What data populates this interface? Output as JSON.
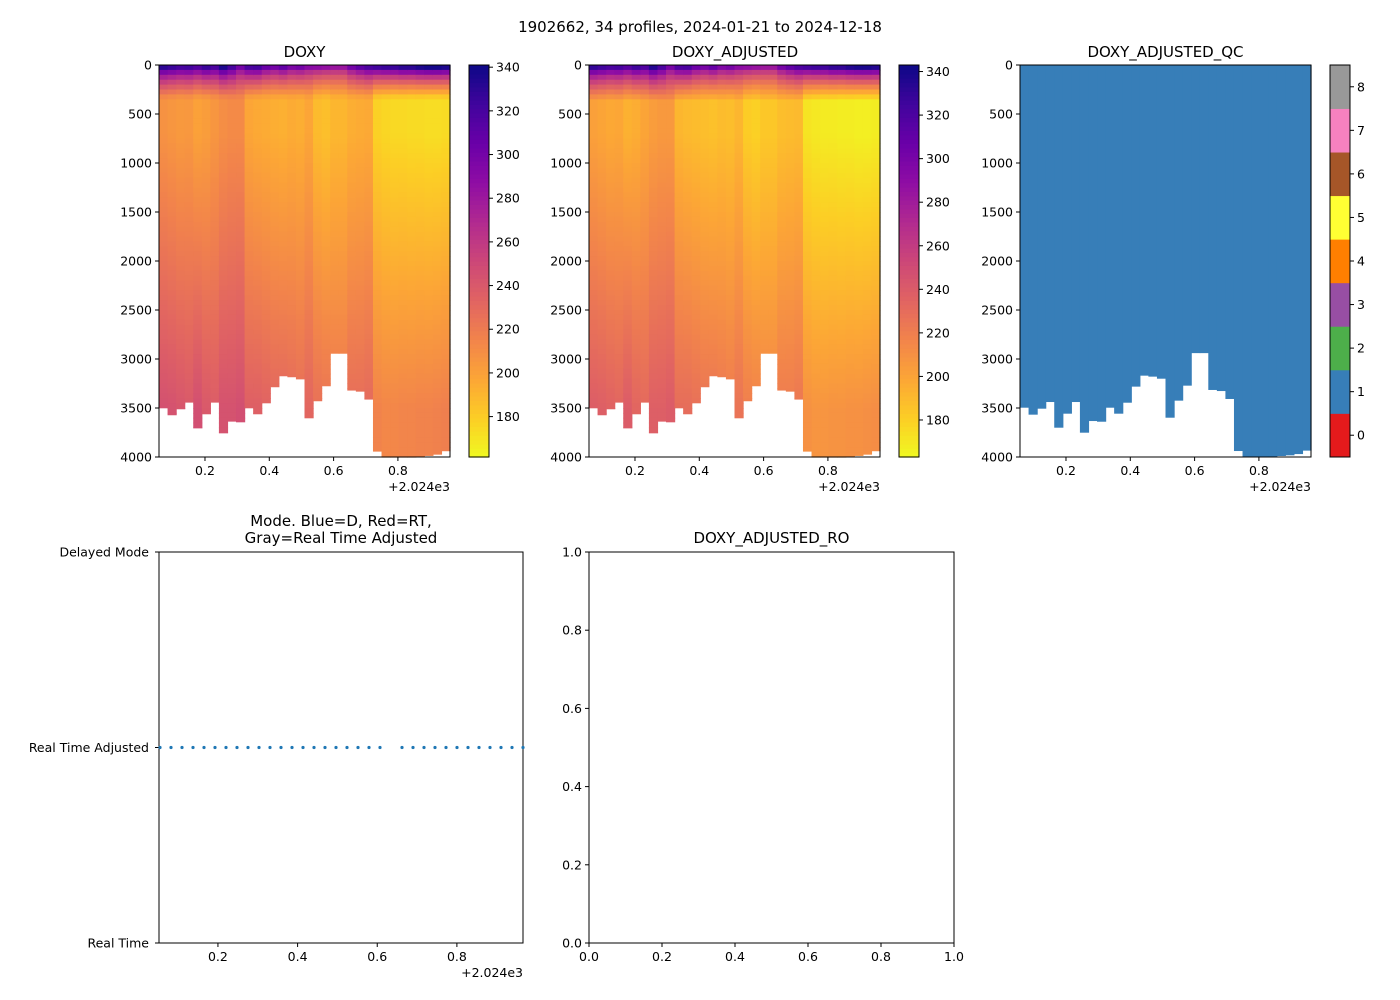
{
  "figure_title": "1902662, 34 profiles, 2024-01-21 to 2024-12-18",
  "chart_data": [
    {
      "id": "doxy",
      "type": "heatmap",
      "title": "DOXY",
      "xlim": [
        0.057,
        0.962
      ],
      "x_offset_label": "+2.024e3",
      "xticks": [
        "0.2",
        "0.4",
        "0.6",
        "0.8"
      ],
      "xtick_values": [
        0.2,
        0.4,
        0.6,
        0.8
      ],
      "ylim": [
        4000,
        0
      ],
      "yticks": [
        0,
        500,
        1000,
        1500,
        2000,
        2500,
        3000,
        3500,
        4000
      ],
      "colorbar": {
        "colormap": "plasma_r",
        "range": [
          161.5,
          341
        ],
        "ticks": [
          180,
          200,
          220,
          240,
          260,
          280,
          300,
          320,
          340
        ]
      },
      "value_offset": 0
    },
    {
      "id": "doxy_adjusted",
      "type": "heatmap",
      "title": "DOXY_ADJUSTED",
      "xlim": [
        0.057,
        0.962
      ],
      "x_offset_label": "+2.024e3",
      "xticks": [
        "0.2",
        "0.4",
        "0.6",
        "0.8"
      ],
      "xtick_values": [
        0.2,
        0.4,
        0.6,
        0.8
      ],
      "ylim": [
        4000,
        0
      ],
      "yticks": [
        0,
        500,
        1000,
        1500,
        2000,
        2500,
        3000,
        3500,
        4000
      ],
      "colorbar": {
        "colormap": "plasma_r",
        "range": [
          163,
          343
        ],
        "ticks": [
          180,
          200,
          220,
          240,
          260,
          280,
          300,
          320,
          340
        ]
      },
      "value_offset": -6
    },
    {
      "id": "doxy_adjusted_qc",
      "type": "heatmap",
      "title": "DOXY_ADJUSTED_QC",
      "xlim": [
        0.057,
        0.962
      ],
      "x_offset_label": "+2.024e3",
      "xticks": [
        "0.2",
        "0.4",
        "0.6",
        "0.8"
      ],
      "xtick_values": [
        0.2,
        0.4,
        0.6,
        0.8
      ],
      "ylim": [
        4000,
        0
      ],
      "yticks": [
        0,
        500,
        1000,
        1500,
        2000,
        2500,
        3000,
        3500,
        4000
      ],
      "qc_value": 1,
      "colorbar": {
        "range": [
          0,
          8
        ],
        "ticks": [
          0,
          1,
          2,
          3,
          4,
          5,
          6,
          7,
          8
        ],
        "colors": [
          "#e41a1c",
          "#377eb8",
          "#4daf4a",
          "#984ea3",
          "#ff7f00",
          "#ffff33",
          "#a65628",
          "#f781bf",
          "#999999"
        ]
      }
    },
    {
      "id": "mode",
      "type": "scatter",
      "title_lines": [
        "Mode. Blue=D, Red=RT,",
        "Gray=Real Time Adjusted"
      ],
      "xlim": [
        0.052,
        0.966
      ],
      "x_offset_label": "+2.024e3",
      "xticks": [
        "0.2",
        "0.4",
        "0.6",
        "0.8"
      ],
      "xtick_values": [
        0.2,
        0.4,
        0.6,
        0.8
      ],
      "ycategories": [
        "Real Time",
        "Real Time Adjusted",
        "Delayed Mode"
      ],
      "point_color": "#1f77b4",
      "y": [
        "Real Time Adjusted",
        "Real Time Adjusted",
        "Real Time Adjusted",
        "Real Time Adjusted",
        "Real Time Adjusted",
        "Real Time Adjusted",
        "Real Time Adjusted",
        "Real Time Adjusted",
        "Real Time Adjusted",
        "Real Time Adjusted",
        "Real Time Adjusted",
        "Real Time Adjusted",
        "Real Time Adjusted",
        "Real Time Adjusted",
        "Real Time Adjusted",
        "Real Time Adjusted",
        "Real Time Adjusted",
        "Real Time Adjusted",
        "Real Time Adjusted",
        "Real Time Adjusted",
        "Real Time Adjusted",
        null,
        "Real Time Adjusted",
        "Real Time Adjusted",
        "Real Time Adjusted",
        "Real Time Adjusted",
        "Real Time Adjusted",
        "Real Time Adjusted",
        "Real Time Adjusted",
        "Real Time Adjusted",
        "Real Time Adjusted",
        "Real Time Adjusted",
        "Real Time Adjusted",
        "Real Time Adjusted"
      ]
    },
    {
      "id": "doxy_adjusted_ro",
      "type": "scatter",
      "title": "DOXY_ADJUSTED_RO",
      "xlim": [
        0,
        1
      ],
      "ylim": [
        0,
        1
      ],
      "xticks": [
        "0.0",
        "0.2",
        "0.4",
        "0.6",
        "0.8",
        "1.0"
      ],
      "xtick_values": [
        0,
        0.2,
        0.4,
        0.6,
        0.8,
        1.0
      ],
      "yticks": [
        "0.0",
        "0.2",
        "0.4",
        "0.6",
        "0.8",
        "1.0"
      ],
      "ytick_values": [
        0,
        0.2,
        0.4,
        0.6,
        0.8,
        1.0
      ],
      "points": []
    }
  ],
  "profiles": {
    "x": [
      0.07,
      0.097,
      0.123,
      0.15,
      0.177,
      0.203,
      0.23,
      0.256,
      0.283,
      0.31,
      0.336,
      0.363,
      0.389,
      0.416,
      0.443,
      0.469,
      0.496,
      0.522,
      0.549,
      0.576,
      0.602,
      0.629,
      0.655,
      0.682,
      0.708,
      0.735,
      0.762,
      0.788,
      0.815,
      0.841,
      0.868,
      0.895,
      0.921,
      0.948
    ],
    "max_depth": [
      3497,
      3568,
      3507,
      3439,
      3701,
      3558,
      3439,
      3752,
      3633,
      3640,
      3497,
      3558,
      3446,
      3282,
      3170,
      3180,
      3201,
      3599,
      3425,
      3272,
      2940,
      2940,
      3316,
      3327,
      3408,
      3939,
      4000,
      4000,
      4000,
      4000,
      3990,
      3983,
      3970,
      3935
    ],
    "surface_doxy": [
      330,
      325,
      320,
      322,
      315,
      325,
      318,
      335,
      320,
      300,
      318,
      320,
      305,
      300,
      308,
      296,
      300,
      290,
      288,
      285,
      282,
      282,
      300,
      310,
      318,
      322,
      325,
      325,
      330,
      330,
      335,
      338,
      338,
      335
    ],
    "min_doxy": [
      208,
      206,
      204,
      205,
      200,
      202,
      206,
      210,
      212,
      212,
      198,
      196,
      195,
      194,
      193,
      195,
      194,
      198,
      188,
      186,
      190,
      190,
      194,
      195,
      196,
      178,
      176,
      175,
      175,
      174,
      174,
      173,
      173,
      174
    ],
    "deep_doxy": [
      245,
      244,
      242,
      240,
      246,
      240,
      238,
      244,
      244,
      246,
      236,
      236,
      234,
      232,
      232,
      230,
      228,
      232,
      226,
      224,
      222,
      222,
      228,
      228,
      230,
      216,
      214,
      214,
      215,
      215,
      216,
      216,
      217,
      218
    ]
  }
}
